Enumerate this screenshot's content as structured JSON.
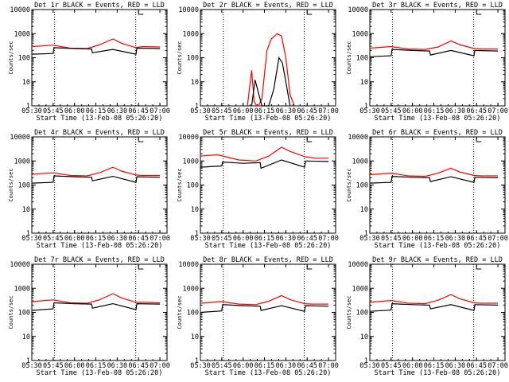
{
  "chart_data": [
    {
      "type": "line",
      "title": "Det 1r BLACK = Events, RED = LLD",
      "xlabel": "Start Time (13-Feb-08 05:26:20)",
      "ylabel": "Counts/sec",
      "yscale": "log",
      "ylim": [
        1,
        10000
      ],
      "xlim": [
        5.5,
        7.0833
      ],
      "xtick_labels": [
        "05:30",
        "05:45",
        "06:00",
        "06:15",
        "06:30",
        "06:45",
        "07:00"
      ],
      "ytick_labels": [
        "1",
        "10",
        "100",
        "1000",
        "10000"
      ],
      "vlines": [
        5.7667,
        6.7167
      ],
      "series": [
        {
          "name": "LLD",
          "color": "#ff0000",
          "x": [
            5.5,
            5.75,
            5.95,
            6.15,
            6.3,
            6.45,
            6.55,
            6.72,
            6.8,
            7.0
          ],
          "y": [
            290,
            330,
            250,
            240,
            350,
            600,
            400,
            260,
            290,
            280
          ]
        },
        {
          "name": "Events",
          "color": "#000000",
          "x": [
            5.5,
            5.75,
            5.76,
            6.0,
            6.2,
            6.21,
            6.45,
            6.72,
            6.73,
            7.0
          ],
          "y": [
            140,
            150,
            260,
            240,
            230,
            160,
            220,
            140,
            250,
            240
          ]
        }
      ]
    },
    {
      "type": "line",
      "title": "Det 2r BLACK = Events, RED = LLD",
      "xlabel": "Start Time (13-Feb-08 05:26:20)",
      "ylabel": "Counts/sec",
      "yscale": "log",
      "ylim": [
        1,
        10000
      ],
      "xlim": [
        5.5,
        7.0833
      ],
      "xtick_labels": [
        "05:30",
        "05:45",
        "06:00",
        "06:15",
        "06:30",
        "06:45",
        "07:00"
      ],
      "ytick_labels": [
        "1",
        "10",
        "100",
        "1000",
        "10000"
      ],
      "vlines": [
        5.7667,
        6.7167
      ],
      "series": [
        {
          "name": "LLD",
          "color": "#ff0000",
          "x": [
            6.05,
            6.1,
            6.13,
            6.16,
            6.18,
            6.22,
            6.28,
            6.33,
            6.4,
            6.45,
            6.5,
            6.55,
            6.6
          ],
          "y": [
            1,
            30,
            1.5,
            1,
            1,
            2,
            200,
            600,
            1000,
            800,
            100,
            3,
            1
          ]
        },
        {
          "name": "Events",
          "color": "#000000",
          "x": [
            6.1,
            6.14,
            6.22,
            6.3,
            6.36,
            6.42,
            6.46,
            6.5,
            6.55
          ],
          "y": [
            1,
            12,
            1,
            1,
            5,
            100,
            60,
            10,
            1
          ]
        }
      ]
    },
    {
      "type": "line",
      "title": "Det 3r BLACK = Events, RED = LLD",
      "xlabel": "Start Time (13-Feb-08 05:26:20)",
      "ylabel": "Counts/sec",
      "yscale": "log",
      "ylim": [
        1,
        10000
      ],
      "xlim": [
        5.5,
        7.0833
      ],
      "xtick_labels": [
        "05:30",
        "05:45",
        "06:00",
        "06:15",
        "06:30",
        "06:45",
        "07:00"
      ],
      "ytick_labels": [
        "1",
        "10",
        "100",
        "1000",
        "10000"
      ],
      "vlines": [
        5.7667,
        6.7167
      ],
      "series": [
        {
          "name": "LLD",
          "color": "#ff0000",
          "x": [
            5.5,
            5.75,
            5.95,
            6.15,
            6.3,
            6.45,
            6.55,
            6.72,
            6.8,
            7.0
          ],
          "y": [
            250,
            290,
            230,
            220,
            280,
            500,
            350,
            240,
            230,
            230
          ]
        },
        {
          "name": "Events",
          "color": "#000000",
          "x": [
            5.5,
            5.75,
            5.76,
            6.0,
            6.2,
            6.21,
            6.45,
            6.72,
            6.73,
            7.0
          ],
          "y": [
            110,
            120,
            220,
            200,
            190,
            130,
            200,
            120,
            200,
            190
          ]
        }
      ]
    },
    {
      "type": "line",
      "title": "Det 4r BLACK = Events, RED = LLD",
      "xlabel": "Start Time (13-Feb-08 05:26:20)",
      "ylabel": "Counts/sec",
      "yscale": "log",
      "ylim": [
        1,
        10000
      ],
      "xlim": [
        5.5,
        7.0833
      ],
      "xtick_labels": [
        "05:30",
        "05:45",
        "06:00",
        "06:15",
        "06:30",
        "06:45",
        "07:00"
      ],
      "ytick_labels": [
        "1",
        "10",
        "100",
        "1000",
        "10000"
      ],
      "vlines": [
        5.7667,
        6.7167
      ],
      "series": [
        {
          "name": "LLD",
          "color": "#ff0000",
          "x": [
            5.5,
            5.75,
            5.95,
            6.15,
            6.3,
            6.45,
            6.55,
            6.72,
            6.8,
            7.0
          ],
          "y": [
            280,
            320,
            250,
            240,
            330,
            550,
            380,
            260,
            250,
            250
          ]
        },
        {
          "name": "Events",
          "color": "#000000",
          "x": [
            5.5,
            5.75,
            5.76,
            6.0,
            6.2,
            6.21,
            6.45,
            6.72,
            6.73,
            7.0
          ],
          "y": [
            120,
            130,
            240,
            220,
            210,
            150,
            230,
            130,
            220,
            210
          ]
        }
      ]
    },
    {
      "type": "line",
      "title": "Det 5r BLACK = Events, RED = LLD",
      "xlabel": "Start Time (13-Feb-08 05:26:20)",
      "ylabel": "Counts/sec",
      "yscale": "log",
      "ylim": [
        1,
        10000
      ],
      "xlim": [
        5.5,
        7.0833
      ],
      "xtick_labels": [
        "05:30",
        "05:45",
        "06:00",
        "06:15",
        "06:30",
        "06:45",
        "07:00"
      ],
      "ytick_labels": [
        "1",
        "10",
        "100",
        "1000",
        "10000"
      ],
      "vlines": [
        5.7667,
        6.7167
      ],
      "series": [
        {
          "name": "LLD",
          "color": "#ff0000",
          "x": [
            5.5,
            5.7,
            5.95,
            6.15,
            6.3,
            6.45,
            6.55,
            6.72,
            6.85,
            7.0
          ],
          "y": [
            1600,
            1800,
            1100,
            1000,
            1600,
            3700,
            2500,
            1500,
            1300,
            1300
          ]
        },
        {
          "name": "Events",
          "color": "#000000",
          "x": [
            5.5,
            5.75,
            5.76,
            6.0,
            6.2,
            6.21,
            6.45,
            6.72,
            6.73,
            7.0
          ],
          "y": [
            550,
            620,
            900,
            800,
            850,
            500,
            1100,
            550,
            1000,
            950
          ]
        }
      ]
    },
    {
      "type": "line",
      "title": "Det 6r BLACK = Events, RED = LLD",
      "xlabel": "Start Time (13-Feb-08 05:26:20)",
      "ylabel": "Counts/sec",
      "yscale": "log",
      "ylim": [
        1,
        10000
      ],
      "xlim": [
        5.5,
        7.0833
      ],
      "xtick_labels": [
        "05:30",
        "05:45",
        "06:00",
        "06:15",
        "06:30",
        "06:45",
        "07:00"
      ],
      "ytick_labels": [
        "1",
        "10",
        "100",
        "1000",
        "10000"
      ],
      "vlines": [
        5.7667,
        6.7167
      ],
      "series": [
        {
          "name": "LLD",
          "color": "#ff0000",
          "x": [
            5.5,
            5.75,
            5.95,
            6.15,
            6.3,
            6.45,
            6.55,
            6.72,
            6.8,
            7.0
          ],
          "y": [
            270,
            310,
            240,
            230,
            310,
            500,
            350,
            250,
            240,
            240
          ]
        },
        {
          "name": "Events",
          "color": "#000000",
          "x": [
            5.5,
            5.75,
            5.76,
            6.0,
            6.2,
            6.21,
            6.45,
            6.72,
            6.73,
            7.0
          ],
          "y": [
            120,
            130,
            230,
            210,
            200,
            140,
            220,
            130,
            210,
            200
          ]
        }
      ]
    },
    {
      "type": "line",
      "title": "Det 7r BLACK = Events, RED = LLD",
      "xlabel": "Start Time (13-Feb-08 05:26:20)",
      "ylabel": "Counts/sec",
      "yscale": "log",
      "ylim": [
        1,
        10000
      ],
      "xlim": [
        5.5,
        7.0833
      ],
      "xtick_labels": [
        "05:30",
        "05:45",
        "06:00",
        "06:15",
        "06:30",
        "06:45",
        "07:00"
      ],
      "ytick_labels": [
        "1",
        "10",
        "100",
        "1000",
        "10000"
      ],
      "vlines": [
        5.7667,
        6.7167
      ],
      "series": [
        {
          "name": "LLD",
          "color": "#ff0000",
          "x": [
            5.5,
            5.75,
            5.95,
            6.15,
            6.3,
            6.45,
            6.55,
            6.72,
            6.8,
            7.0
          ],
          "y": [
            280,
            330,
            250,
            240,
            340,
            600,
            400,
            260,
            260,
            250
          ]
        },
        {
          "name": "Events",
          "color": "#000000",
          "x": [
            5.5,
            5.75,
            5.76,
            6.0,
            6.2,
            6.21,
            6.45,
            6.72,
            6.73,
            7.0
          ],
          "y": [
            120,
            140,
            250,
            230,
            220,
            150,
            230,
            130,
            230,
            220
          ]
        }
      ]
    },
    {
      "type": "line",
      "title": "Det 8r BLACK = Events, RED = LLD",
      "xlabel": "Start Time (13-Feb-08 05:26:20)",
      "ylabel": "Counts/sec",
      "yscale": "log",
      "ylim": [
        1,
        10000
      ],
      "xlim": [
        5.5,
        7.0833
      ],
      "xtick_labels": [
        "05:30",
        "05:45",
        "06:00",
        "06:15",
        "06:30",
        "06:45",
        "07:00"
      ],
      "ytick_labels": [
        "1",
        "10",
        "100",
        "1000",
        "10000"
      ],
      "vlines": [
        5.7667,
        6.7167
      ],
      "series": [
        {
          "name": "LLD",
          "color": "#ff0000",
          "x": [
            5.5,
            5.75,
            5.95,
            6.15,
            6.3,
            6.45,
            6.55,
            6.72,
            6.8,
            7.0
          ],
          "y": [
            240,
            280,
            220,
            210,
            290,
            500,
            340,
            230,
            220,
            220
          ]
        },
        {
          "name": "Events",
          "color": "#000000",
          "x": [
            5.5,
            5.75,
            5.76,
            6.0,
            6.2,
            6.21,
            6.45,
            6.72,
            6.73,
            7.0
          ],
          "y": [
            100,
            115,
            210,
            190,
            180,
            120,
            190,
            110,
            190,
            180
          ]
        }
      ]
    },
    {
      "type": "line",
      "title": "Det 9r BLACK = Events, RED = LLD",
      "xlabel": "Start Time (13-Feb-08 05:26:20)",
      "ylabel": "Counts/sec",
      "yscale": "log",
      "ylim": [
        1,
        10000
      ],
      "xlim": [
        5.5,
        7.0833
      ],
      "xtick_labels": [
        "05:30",
        "05:45",
        "06:00",
        "06:15",
        "06:30",
        "06:45",
        "07:00"
      ],
      "ytick_labels": [
        "1",
        "10",
        "100",
        "1000",
        "10000"
      ],
      "vlines": [
        5.7667,
        6.7167
      ],
      "series": [
        {
          "name": "LLD",
          "color": "#ff0000",
          "x": [
            5.5,
            5.75,
            5.95,
            6.15,
            6.3,
            6.45,
            6.55,
            6.72,
            6.8,
            7.0
          ],
          "y": [
            260,
            310,
            240,
            230,
            320,
            550,
            370,
            250,
            240,
            240
          ]
        },
        {
          "name": "Events",
          "color": "#000000",
          "x": [
            5.5,
            5.75,
            5.76,
            6.0,
            6.2,
            6.21,
            6.45,
            6.72,
            6.73,
            7.0
          ],
          "y": [
            110,
            125,
            230,
            210,
            200,
            140,
            210,
            120,
            210,
            200
          ]
        }
      ]
    }
  ]
}
